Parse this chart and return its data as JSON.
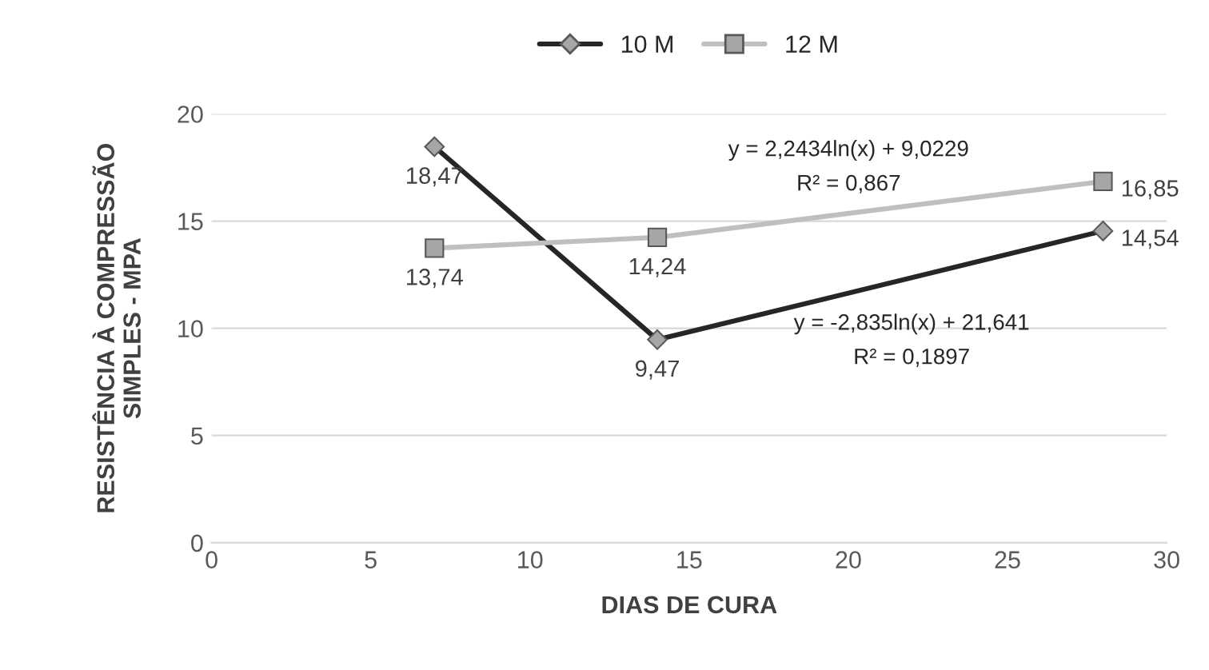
{
  "chart_data": {
    "type": "line",
    "xlabel": "DIAS DE CURA",
    "ylabel": "RESISTÊNCIA À COMPRESSÃO\nSIMPLES - MPA",
    "x": [
      7,
      14,
      28
    ],
    "series": [
      {
        "name": "10 M",
        "color": "#262626",
        "marker": "diamond",
        "values": [
          18.47,
          9.47,
          14.54
        ],
        "value_labels": [
          "18,47",
          "9,47",
          "14,54"
        ]
      },
      {
        "name": "12 M",
        "color": "#bfbfbf",
        "marker": "square",
        "values": [
          13.74,
          14.24,
          16.85
        ],
        "value_labels": [
          "13,74",
          "14,24",
          "16,85"
        ]
      }
    ],
    "annotations": [
      "y = 2,2434ln(x) + 9,0229",
      "R² = 0,867",
      "y = -2,835ln(x) + 21,641",
      "R² = 0,1897"
    ],
    "xlim": [
      0,
      30
    ],
    "xticks": [
      0,
      5,
      10,
      15,
      20,
      25,
      30
    ],
    "ylim": [
      0,
      20
    ],
    "yticks": [
      0,
      5,
      10,
      15,
      20
    ],
    "grid": "y",
    "legend": "top",
    "line_style": "solid"
  }
}
